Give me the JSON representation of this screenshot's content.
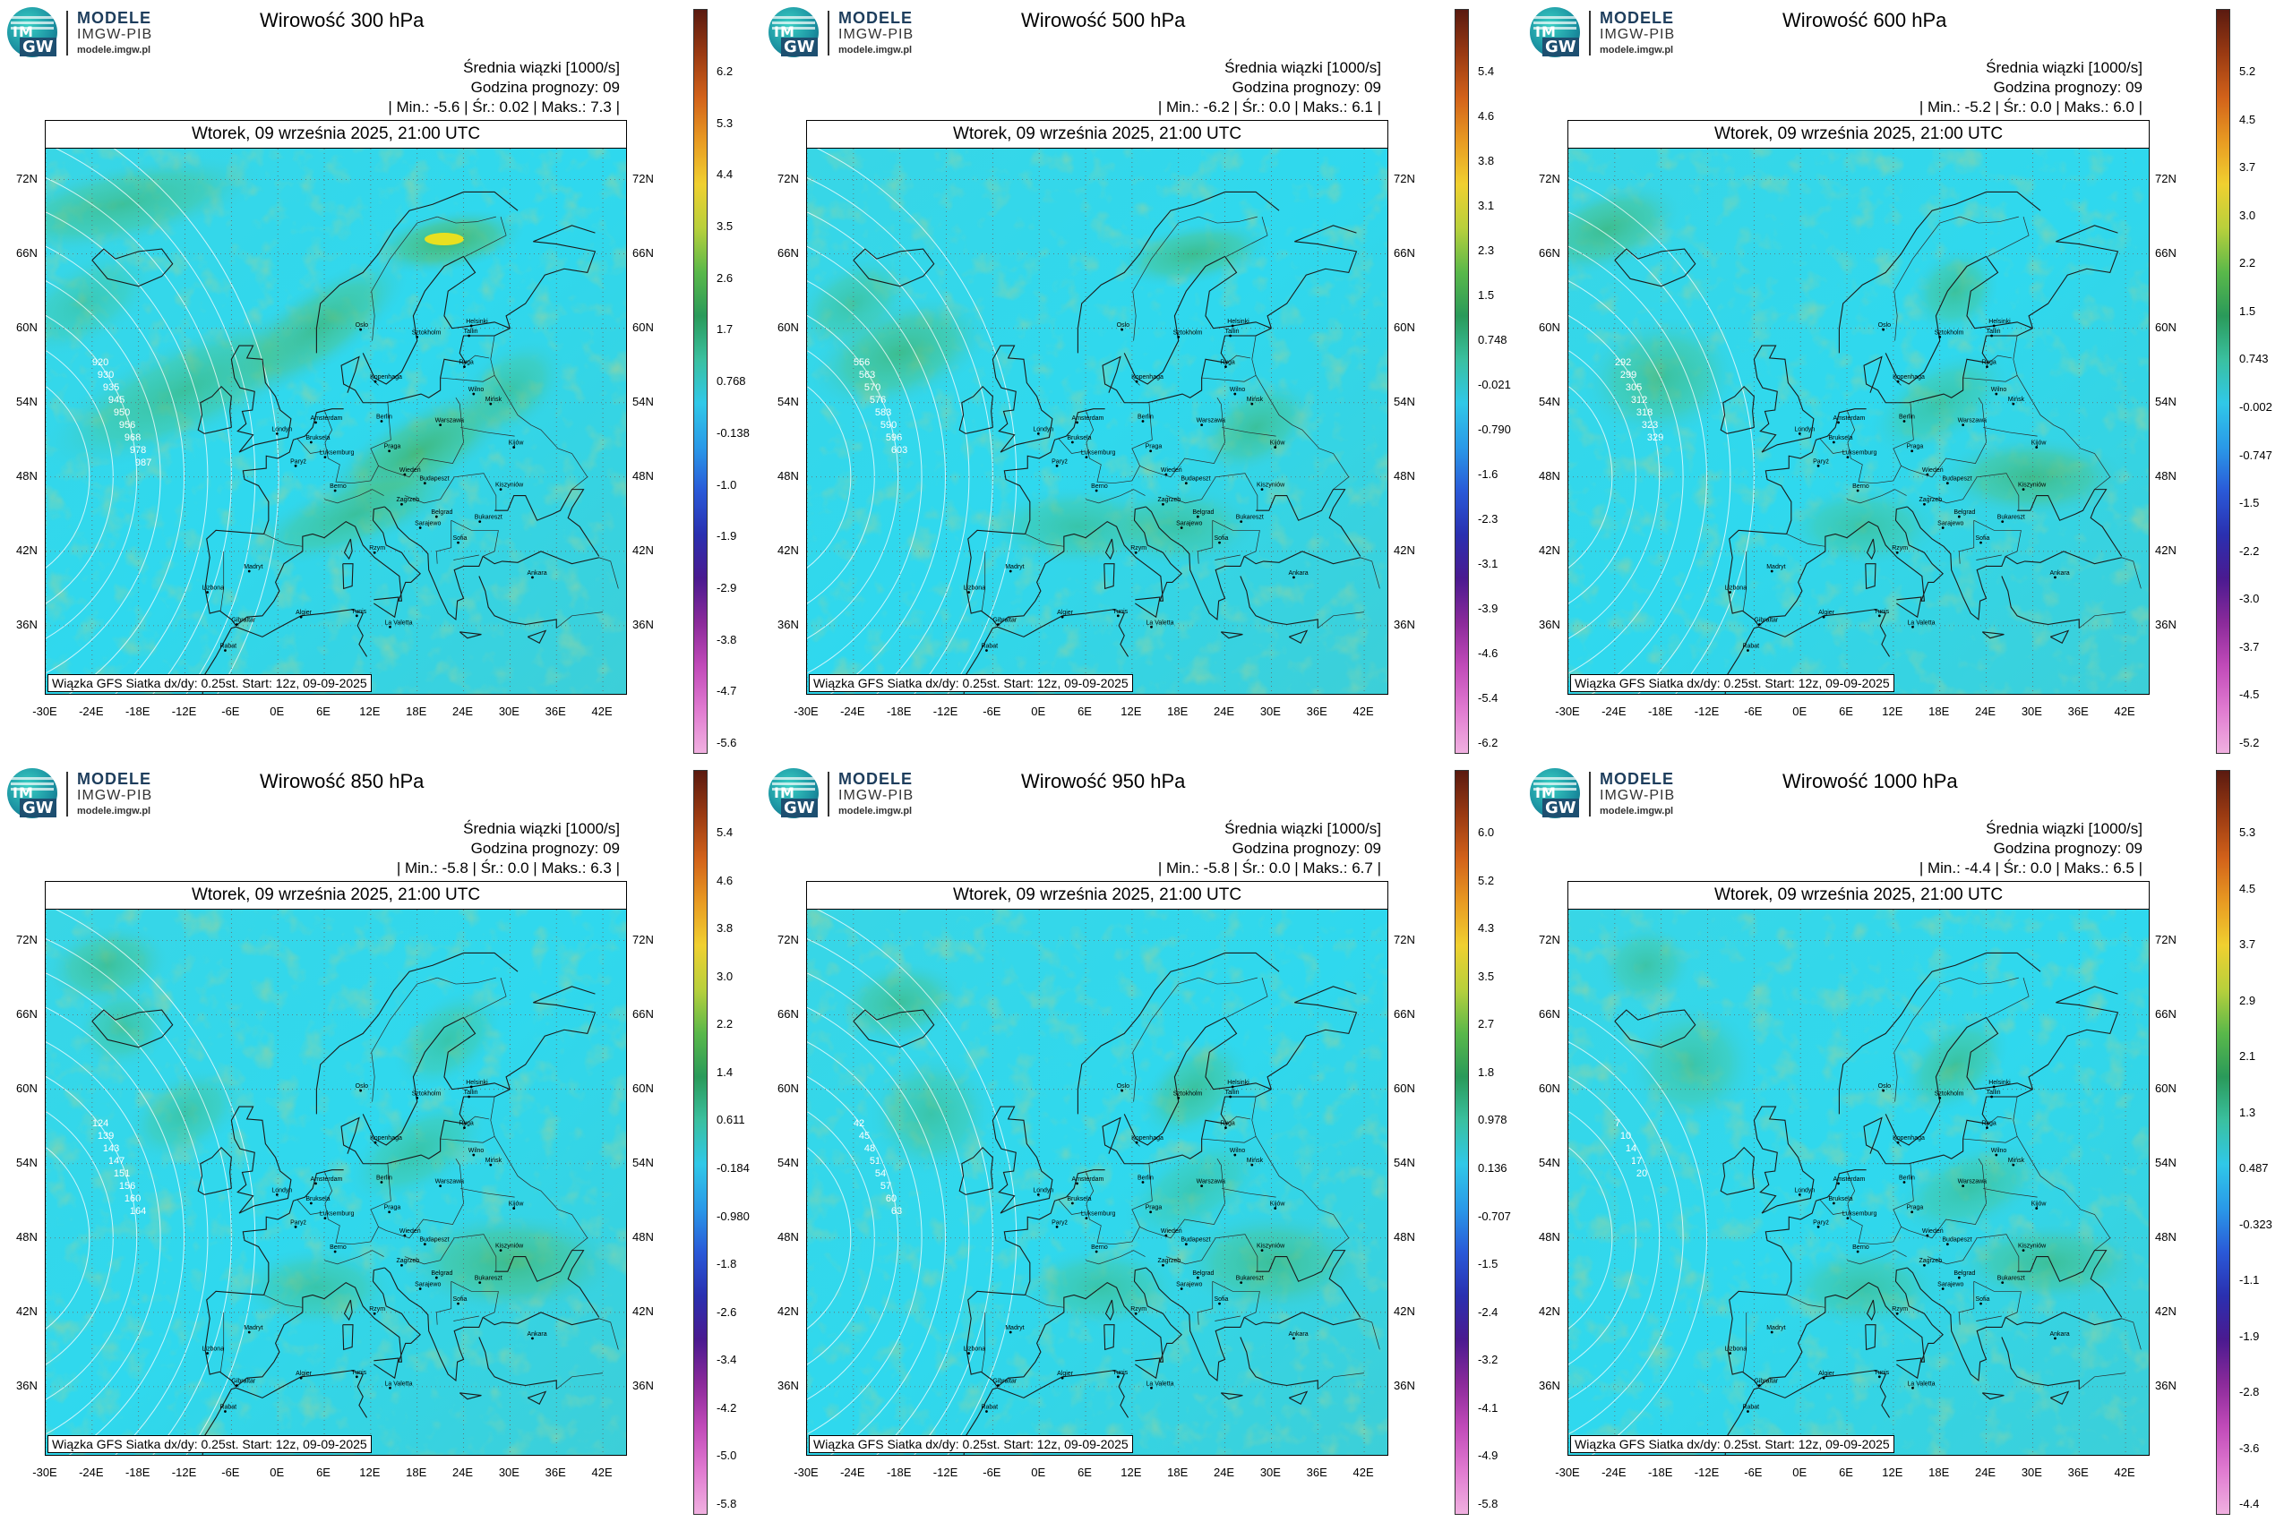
{
  "logo": {
    "brand": "MODELE",
    "org": "IMGW-PIB",
    "url": "modele.imgw.pl",
    "mark_top": "IM",
    "mark_bottom": "GW"
  },
  "common": {
    "unit": "Średnia wiązki [1000/s]",
    "forecast_hour": "Godzina prognozy: 09",
    "date": "Wtorek, 09 września 2025, 21:00 UTC",
    "footer": "Wiązka GFS Siatka dx/dy: 0.25st. Start: 12z, 09-09-2025",
    "lat_labels": [
      "72N",
      "66N",
      "60N",
      "54N",
      "48N",
      "42N",
      "36N"
    ],
    "lon_labels": [
      "-30E",
      "-24E",
      "-18E",
      "-12E",
      "-6E",
      "0E",
      "6E",
      "12E",
      "18E",
      "24E",
      "30E",
      "36E",
      "42E"
    ],
    "cities": [
      "Oslo",
      "Sztokholm",
      "Helsinki",
      "Tallin",
      "Ryga",
      "Kopenhaga",
      "Wilno",
      "Mińsk",
      "Amsterdam",
      "Londyn",
      "Berlin",
      "Warszawa",
      "Bruksela",
      "Luksemburg",
      "Praga",
      "Paryż",
      "Kijów",
      "Wiedeń",
      "Berno",
      "Budapeszt",
      "Zagrzeb",
      "Kiszyniów",
      "Belgrad",
      "Bukareszt",
      "Sarajewo",
      "Madryt",
      "Rzym",
      "Sofia",
      "Ankara",
      "Lizbona",
      "Tunis",
      "Algier",
      "La Valetta",
      "Gibraltar",
      "Rabat"
    ],
    "colors": {
      "background_field": "#27d9f0",
      "green_vort": "#3aa86a",
      "coast": "#222222"
    }
  },
  "panels": [
    {
      "title": "Wirowość 300 hPa",
      "stats": {
        "min": "-5.6",
        "mean": "0.02",
        "max": "7.3"
      },
      "colorbar": [
        "6.2",
        "5.3",
        "4.4",
        "3.5",
        "2.6",
        "1.7",
        "0.768",
        "-0.138",
        "-1.0",
        "-1.9",
        "-2.9",
        "-3.8",
        "-4.7",
        "-5.6"
      ],
      "contours": [
        "920",
        "930",
        "935",
        "945",
        "950",
        "956",
        "968",
        "978",
        "987"
      ]
    },
    {
      "title": "Wirowość 500 hPa",
      "stats": {
        "min": "-6.2",
        "mean": "0.0",
        "max": "6.1"
      },
      "colorbar": [
        "5.4",
        "4.6",
        "3.8",
        "3.1",
        "2.3",
        "1.5",
        "0.748",
        "-0.021",
        "-0.790",
        "-1.6",
        "-2.3",
        "-3.1",
        "-3.9",
        "-4.6",
        "-5.4",
        "-6.2"
      ],
      "contours": [
        "556",
        "563",
        "570",
        "576",
        "583",
        "590",
        "596",
        "603"
      ]
    },
    {
      "title": "Wirowość 600 hPa",
      "stats": {
        "min": "-5.2",
        "mean": "0.0",
        "max": "6.0"
      },
      "colorbar": [
        "5.2",
        "4.5",
        "3.7",
        "3.0",
        "2.2",
        "1.5",
        "0.743",
        "-0.002",
        "-0.747",
        "-1.5",
        "-2.2",
        "-3.0",
        "-3.7",
        "-4.5",
        "-5.2"
      ],
      "contours": [
        "292",
        "299",
        "305",
        "312",
        "318",
        "323",
        "329"
      ]
    },
    {
      "title": "Wirowość 850 hPa",
      "stats": {
        "min": "-5.8",
        "mean": "0.0",
        "max": "6.3"
      },
      "colorbar": [
        "5.4",
        "4.6",
        "3.8",
        "3.0",
        "2.2",
        "1.4",
        "0.611",
        "-0.184",
        "-0.980",
        "-1.8",
        "-2.6",
        "-3.4",
        "-4.2",
        "-5.0",
        "-5.8"
      ],
      "contours": [
        "124",
        "139",
        "143",
        "147",
        "151",
        "156",
        "160",
        "164"
      ]
    },
    {
      "title": "Wirowość 950 hPa",
      "stats": {
        "min": "-5.8",
        "mean": "0.0",
        "max": "6.7"
      },
      "colorbar": [
        "6.0",
        "5.2",
        "4.3",
        "3.5",
        "2.7",
        "1.8",
        "0.978",
        "0.136",
        "-0.707",
        "-1.5",
        "-2.4",
        "-3.2",
        "-4.1",
        "-4.9",
        "-5.8"
      ],
      "contours": [
        "42",
        "45",
        "48",
        "51",
        "54",
        "57",
        "60",
        "63"
      ]
    },
    {
      "title": "Wirowość 1000 hPa",
      "stats": {
        "min": "-4.4",
        "mean": "0.0",
        "max": "6.5"
      },
      "colorbar": [
        "5.3",
        "4.5",
        "3.7",
        "2.9",
        "2.1",
        "1.3",
        "0.487",
        "-0.323",
        "-1.1",
        "-1.9",
        "-2.8",
        "-3.6",
        "-4.4"
      ],
      "contours": [
        "7",
        "10",
        "14",
        "17",
        "20"
      ]
    }
  ]
}
